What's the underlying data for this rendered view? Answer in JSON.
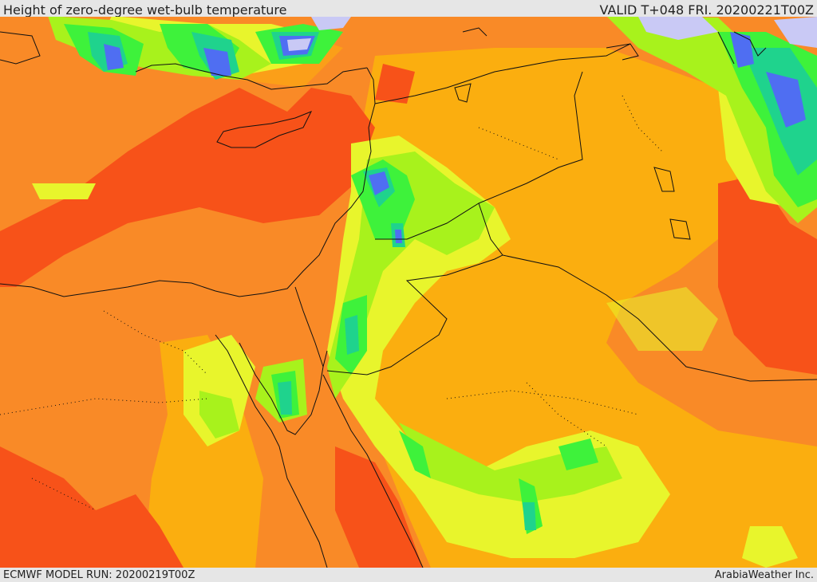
{
  "header": {
    "title": "Height of zero-degree wet-bulb temperature",
    "valid": "VALID T+048 FRI. 20200221T00Z"
  },
  "footer": {
    "model_run": "ECMWF MODEL RUN: 20200219T00Z",
    "credit": "ArabiaWeather Inc."
  },
  "map": {
    "colors": {
      "red": "#f75219",
      "dark_orange": "#f98a27",
      "orange": "#fbae0f",
      "yellow": "#e8f52c",
      "lime": "#a8f21c",
      "green": "#3ef23b",
      "teal": "#1fd38d",
      "cyan": "#1ec8e6",
      "blue": "#4f6ef2",
      "lavender": "#c9c9f5",
      "border": "#111111"
    }
  }
}
